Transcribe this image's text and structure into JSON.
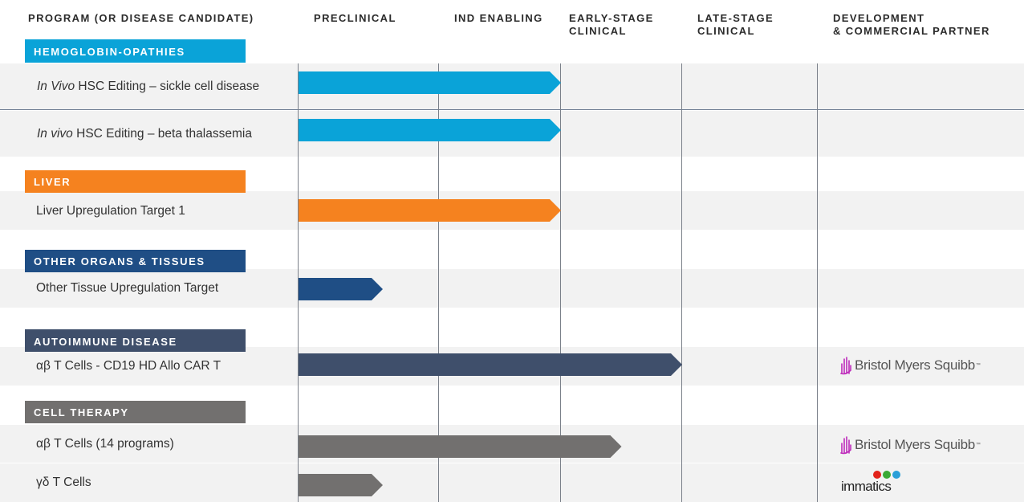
{
  "headers": {
    "program": "PROGRAM (OR DISEASE CANDIDATE)",
    "preclinical": "PRECLINICAL",
    "ind_enabling": "IND ENABLING",
    "early_stage": [
      "EARLY-STAGE",
      "CLINICAL"
    ],
    "late_stage": [
      "LATE-STAGE",
      "CLINICAL"
    ],
    "partner": [
      "DEVELOPMENT",
      "& COMMERCIAL PARTNER"
    ]
  },
  "stages": [
    "Preclinical",
    "IND Enabling",
    "Early-Stage Clinical",
    "Late-Stage Clinical"
  ],
  "colors": {
    "hemoglobinopathies": "#0aa3d8",
    "liver": "#f5821f",
    "other_organs": "#1f4e85",
    "autoimmune": "#3f4f6b",
    "cell_therapy": "#72706f",
    "bms_icon": "#be2bbb"
  },
  "categories": [
    {
      "name": "HEMOGLOBIN-OPATHIES",
      "color": "#0aa3d8",
      "programs": [
        {
          "label_italic": "In Vivo",
          "label_rest": " HSC Editing – sickle cell disease",
          "stage": "IND Enabling",
          "progress": 2.0,
          "partner": ""
        },
        {
          "label_italic": "In vivo",
          "label_rest": " HSC Editing – beta thalassemia",
          "stage": "IND Enabling",
          "progress": 2.0,
          "partner": ""
        }
      ]
    },
    {
      "name": "LIVER",
      "color": "#f5821f",
      "programs": [
        {
          "label_italic": "",
          "label_rest": "Liver Upregulation Target 1",
          "stage": "IND Enabling",
          "progress": 2.0,
          "partner": ""
        }
      ]
    },
    {
      "name": "OTHER ORGANS & TISSUES",
      "color": "#1f4e85",
      "programs": [
        {
          "label_italic": "",
          "label_rest": "Other Tissue Upregulation Target",
          "stage": "Preclinical",
          "progress": 0.6,
          "partner": ""
        }
      ]
    },
    {
      "name": "AUTOIMMUNE DISEASE",
      "color": "#3f4f6b",
      "programs": [
        {
          "label_italic": "",
          "label_rest": "αβ T Cells - CD19 HD Allo CAR T",
          "stage": "Early-Stage Clinical",
          "progress": 3.0,
          "partner": "Bristol Myers Squibb"
        }
      ]
    },
    {
      "name": "CELL THERAPY",
      "color": "#72706f",
      "programs": [
        {
          "label_italic": "",
          "label_rest": "αβ T Cells (14 programs)",
          "stage": "Early-Stage Clinical",
          "progress": 2.5,
          "partner": "Bristol Myers Squibb"
        },
        {
          "label_italic": "",
          "label_rest": "γδ T Cells",
          "stage": "Preclinical",
          "progress": 0.6,
          "partner": "immatics"
        }
      ]
    }
  ]
}
